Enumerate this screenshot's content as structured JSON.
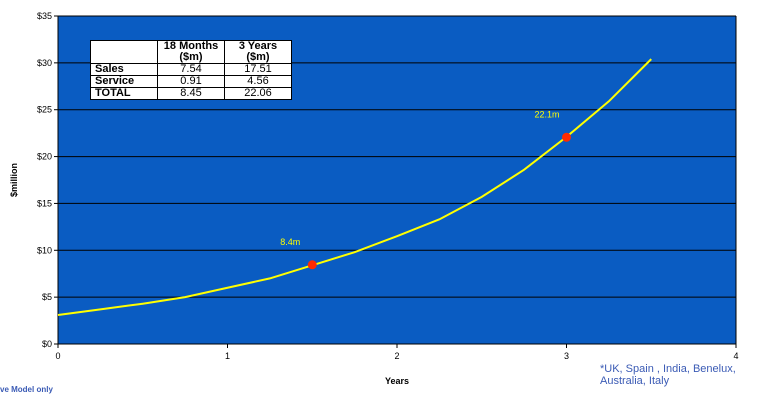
{
  "chart_data": {
    "type": "line",
    "xlabel": "Years",
    "ylabel": "$million",
    "xlim": [
      0,
      4
    ],
    "ylim": [
      0,
      35
    ],
    "x_ticks": [
      "0",
      "1",
      "2",
      "3",
      "4"
    ],
    "y_ticks": [
      "$0",
      "$5",
      "$10",
      "$15",
      "$20",
      "$25",
      "$30",
      "$35"
    ],
    "grid": "horizontal",
    "background_color": "#0a5cc2",
    "line_color": "#ffff00",
    "marker_color": "#ff2a00",
    "series": [
      {
        "x": [
          0,
          0.25,
          0.5,
          0.75,
          1,
          1.25,
          1.5,
          1.75,
          2,
          2.25,
          2.5,
          2.75,
          3,
          3.25,
          3.5
        ],
        "values": [
          3.1,
          3.7,
          4.3,
          5.0,
          6.0,
          7.0,
          8.4,
          9.8,
          11.5,
          13.3,
          15.7,
          18.6,
          22.1,
          25.9,
          30.4
        ]
      }
    ],
    "highlight_points": [
      {
        "x": 1.5,
        "y": 8.45,
        "label": "8.4m"
      },
      {
        "x": 3.0,
        "y": 22.06,
        "label": "22.1m"
      }
    ]
  },
  "table": {
    "headers": [
      {
        "line1": "18 Months",
        "line2": "($m)"
      },
      {
        "line1": "3 Years",
        "line2": "($m)"
      }
    ],
    "rows": [
      {
        "label": "Sales",
        "v1": "7.54",
        "v2": "17.51"
      },
      {
        "label": "Service",
        "v1": "0.91",
        "v2": "4.56"
      },
      {
        "label": "TOTAL",
        "v1": "8.45",
        "v2": "22.06"
      }
    ]
  },
  "footnote": "*UK, Spain , India, Benelux, Australia, Italy",
  "left_note": "ve Model only"
}
